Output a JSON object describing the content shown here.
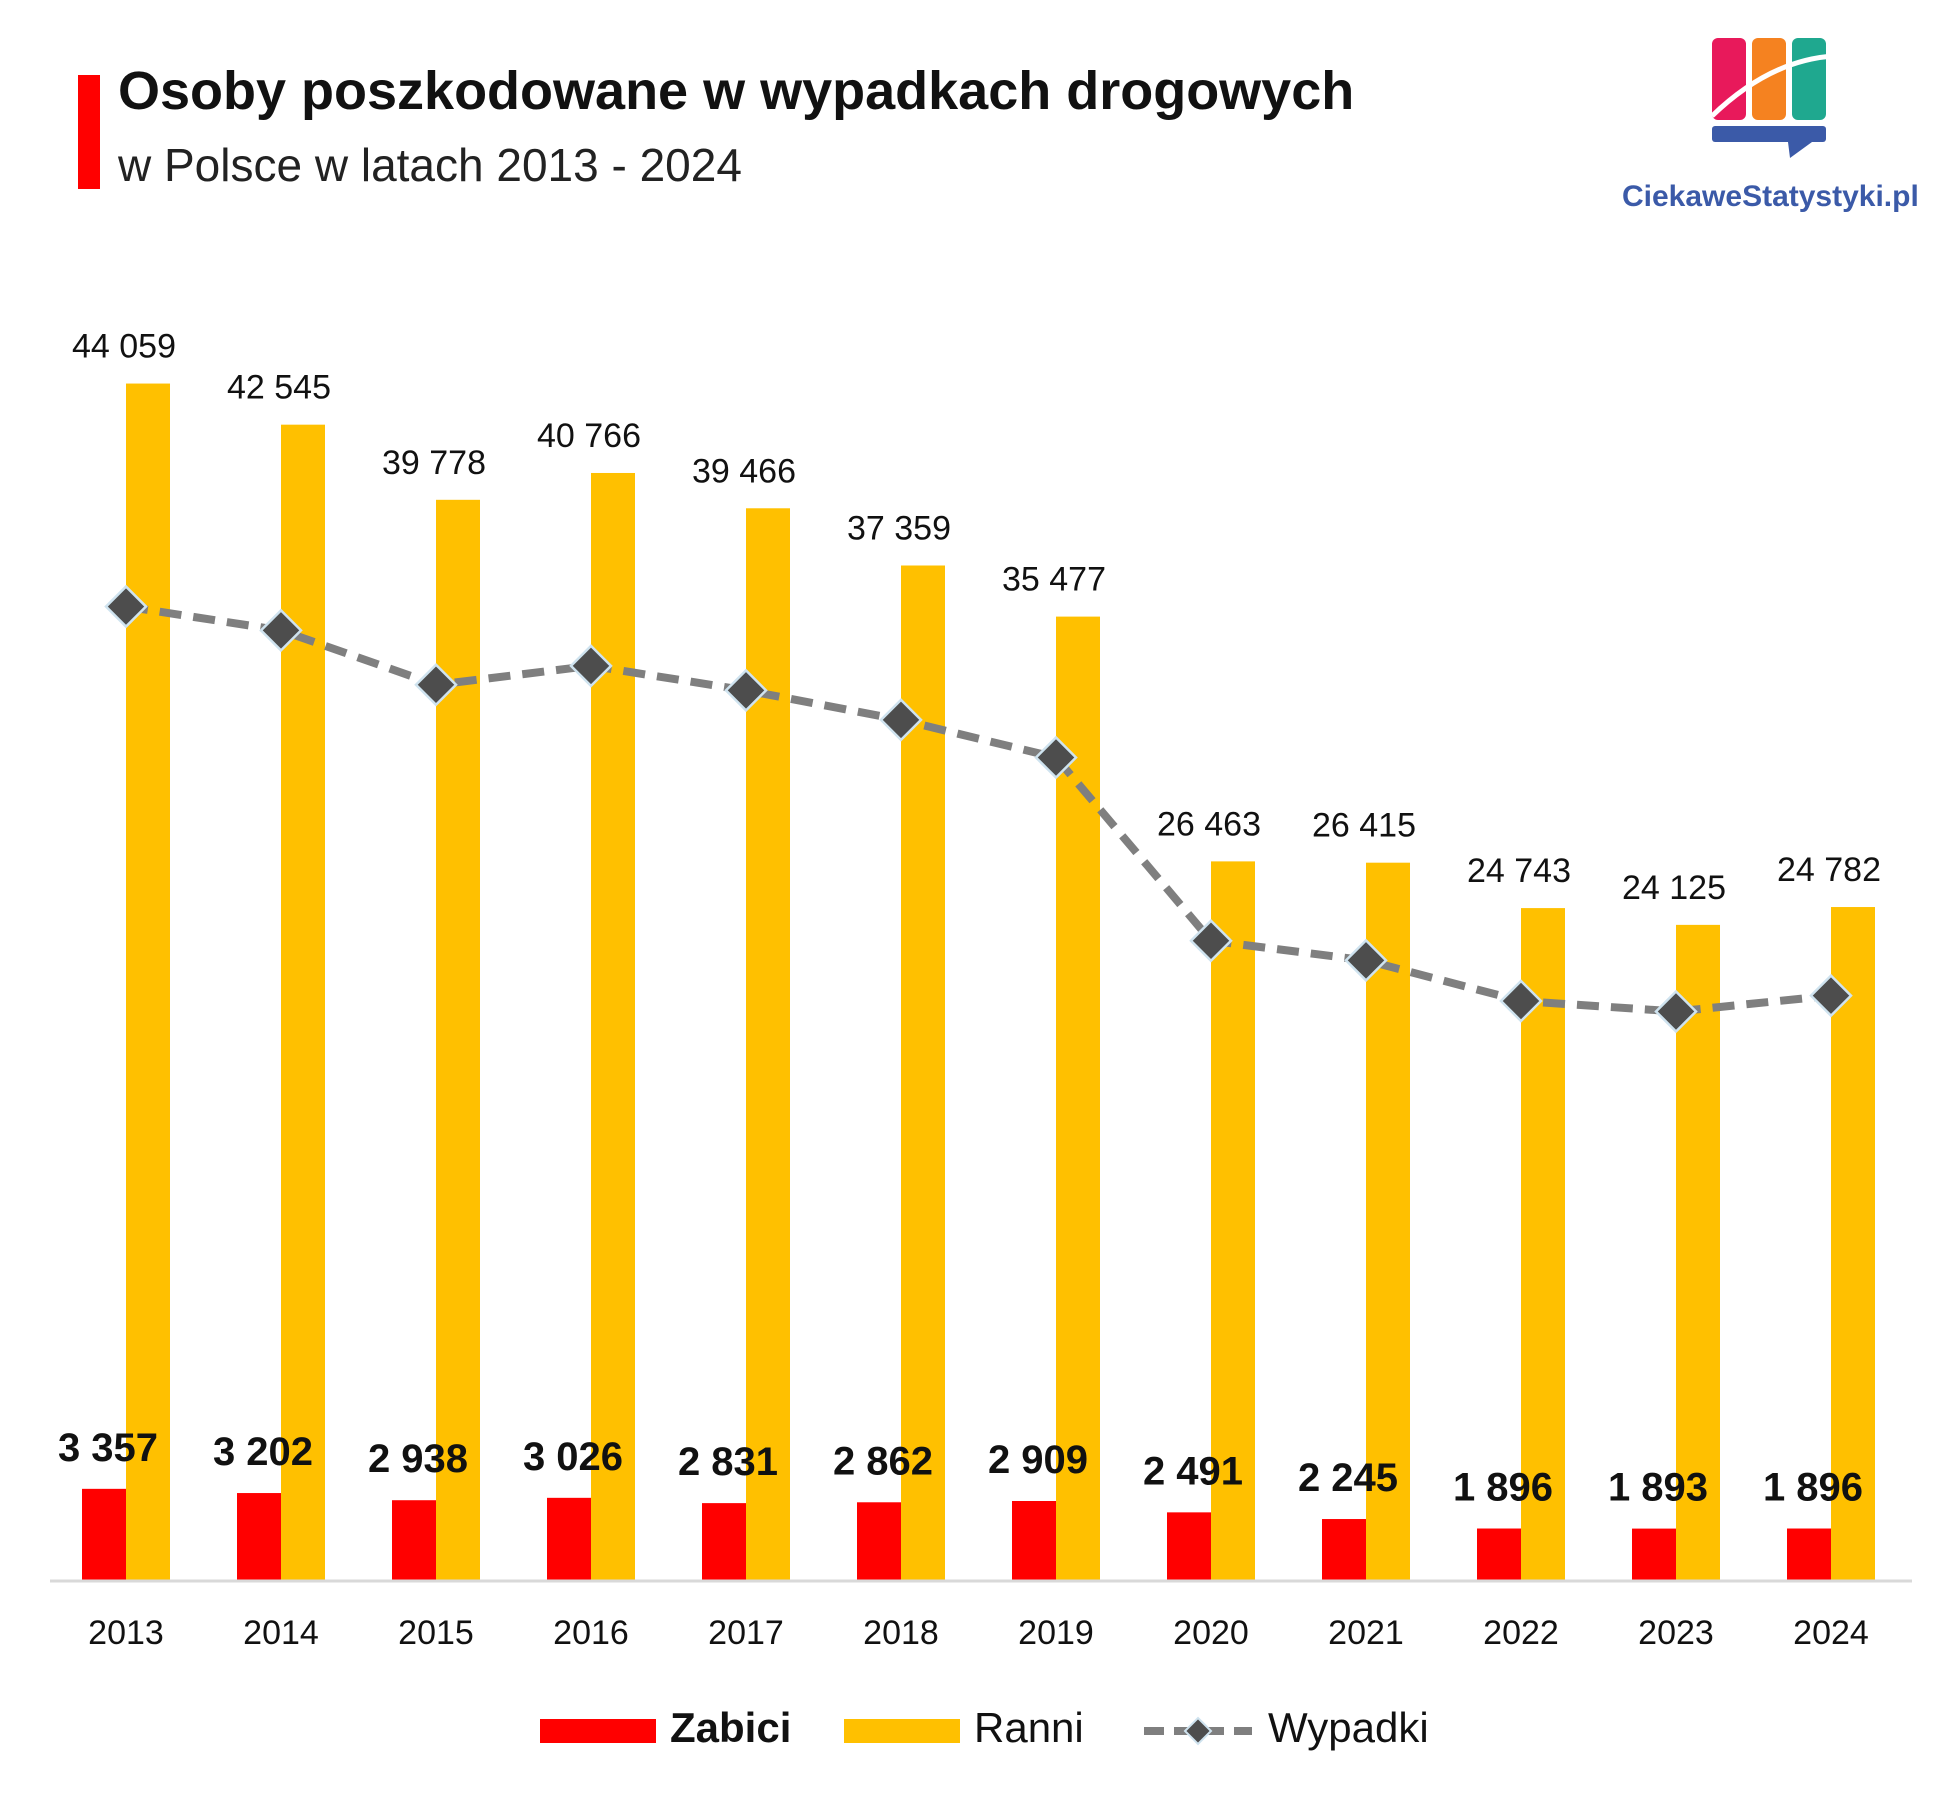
{
  "header": {
    "title": "Osoby poszkodowane w wypadkach drogowych",
    "subtitle": "w Polsce w latach 2013 - 2024",
    "accent_color": "#ff0000"
  },
  "logo": {
    "text": "CiekaweStatystyki.pl",
    "colors": [
      "#e8195b",
      "#f58220",
      "#1fa88f",
      "#3b5aa8"
    ]
  },
  "chart_data": {
    "type": "bar",
    "title": "Osoby poszkodowane w wypadkach drogowych w Polsce w latach 2013 - 2024",
    "categories": [
      "2013",
      "2014",
      "2015",
      "2016",
      "2017",
      "2018",
      "2019",
      "2020",
      "2021",
      "2022",
      "2023",
      "2024"
    ],
    "series": [
      {
        "name": "Zabici",
        "kind": "bar",
        "color": "#ff0000",
        "values": [
          3357,
          3202,
          2938,
          3026,
          2831,
          2862,
          2909,
          2491,
          2245,
          1896,
          1893,
          1896
        ],
        "labels": [
          "3 357",
          "3 202",
          "2 938",
          "3 026",
          "2 831",
          "2 862",
          "2 909",
          "2 491",
          "2 245",
          "1 896",
          "1 893",
          "1 896"
        ]
      },
      {
        "name": "Ranni",
        "kind": "bar",
        "color": "#ffc000",
        "values": [
          44059,
          42545,
          39778,
          40766,
          39466,
          37359,
          35477,
          26463,
          26415,
          24743,
          24125,
          24782
        ],
        "labels": [
          "44 059",
          "42 545",
          "39 778",
          "40 766",
          "39 466",
          "37 359",
          "35 477",
          "26 463",
          "26 415",
          "24 743",
          "24 125",
          "24 782"
        ]
      },
      {
        "name": "Wypadki",
        "kind": "line",
        "style": "dashed",
        "marker": "diamond",
        "color": "#7f7f7f",
        "marker_color": "#4d4d4d",
        "values": [
          35847,
          34970,
          32967,
          33664,
          32760,
          31674,
          30288,
          23540,
          22816,
          21322,
          20936,
          21519
        ]
      }
    ],
    "ylim": [
      0,
      45000
    ],
    "legend_position": "bottom",
    "grid": false
  }
}
